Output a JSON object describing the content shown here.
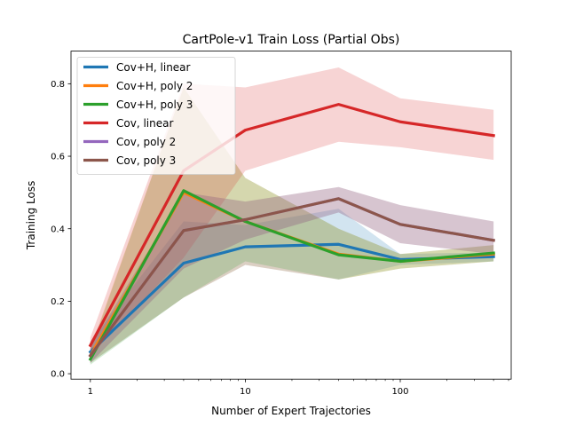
{
  "chart_data": {
    "type": "line",
    "title": "CartPole-v1 Train Loss (Partial Obs)",
    "xlabel": "Number of Expert Trajectories",
    "ylabel": "Training Loss",
    "x_scale": "log",
    "xlim": [
      0.75,
      520
    ],
    "ylim": [
      -0.015,
      0.89
    ],
    "x": [
      1,
      4,
      10,
      40,
      100,
      400
    ],
    "xticks": [
      1,
      10,
      100
    ],
    "xtick_labels": [
      "1",
      "10",
      "100"
    ],
    "yticks": [
      0.0,
      0.2,
      0.4,
      0.6,
      0.8
    ],
    "ytick_labels": [
      "0.0",
      "0.2",
      "0.4",
      "0.6",
      "0.8"
    ],
    "grid": false,
    "legend_position": "top-left",
    "series": [
      {
        "name": "Cov+H, linear",
        "color": "#1f77b4",
        "values": [
          0.06,
          0.305,
          0.35,
          0.357,
          0.315,
          0.323
        ],
        "lower": [
          0.03,
          0.21,
          0.3,
          0.26,
          0.3,
          0.31
        ],
        "upper": [
          0.09,
          0.42,
          0.41,
          0.455,
          0.33,
          0.335
        ]
      },
      {
        "name": "Cov+H, poly 2",
        "color": "#ff7f0e",
        "values": [
          0.05,
          0.5,
          0.42,
          0.33,
          0.31,
          0.33
        ],
        "lower": [
          0.03,
          0.21,
          0.3,
          0.26,
          0.29,
          0.31
        ],
        "upper": [
          0.07,
          0.79,
          0.54,
          0.4,
          0.33,
          0.355
        ]
      },
      {
        "name": "Cov+H, poly 3",
        "color": "#2ca02c",
        "values": [
          0.04,
          0.505,
          0.42,
          0.328,
          0.31,
          0.333
        ],
        "lower": [
          0.025,
          0.21,
          0.31,
          0.26,
          0.29,
          0.31
        ],
        "upper": [
          0.065,
          0.79,
          0.54,
          0.4,
          0.33,
          0.355
        ]
      },
      {
        "name": "Cov, linear",
        "color": "#d62728",
        "values": [
          0.078,
          0.56,
          0.672,
          0.743,
          0.695,
          0.657
        ],
        "lower": [
          0.05,
          0.32,
          0.56,
          0.64,
          0.625,
          0.59
        ],
        "upper": [
          0.1,
          0.8,
          0.79,
          0.845,
          0.76,
          0.728
        ]
      },
      {
        "name": "Cov, poly 2",
        "color": "#9467bd",
        "values": [
          0.05,
          0.395,
          0.425,
          0.483,
          0.412,
          0.368
        ],
        "lower": [
          0.03,
          0.29,
          0.37,
          0.445,
          0.36,
          0.33
        ],
        "upper": [
          0.075,
          0.5,
          0.475,
          0.515,
          0.465,
          0.42
        ]
      },
      {
        "name": "Cov, poly 3",
        "color": "#8c564b",
        "values": [
          0.05,
          0.395,
          0.425,
          0.483,
          0.412,
          0.368
        ],
        "lower": [
          0.03,
          0.29,
          0.37,
          0.445,
          0.36,
          0.33
        ],
        "upper": [
          0.075,
          0.5,
          0.475,
          0.515,
          0.465,
          0.42
        ]
      }
    ]
  }
}
